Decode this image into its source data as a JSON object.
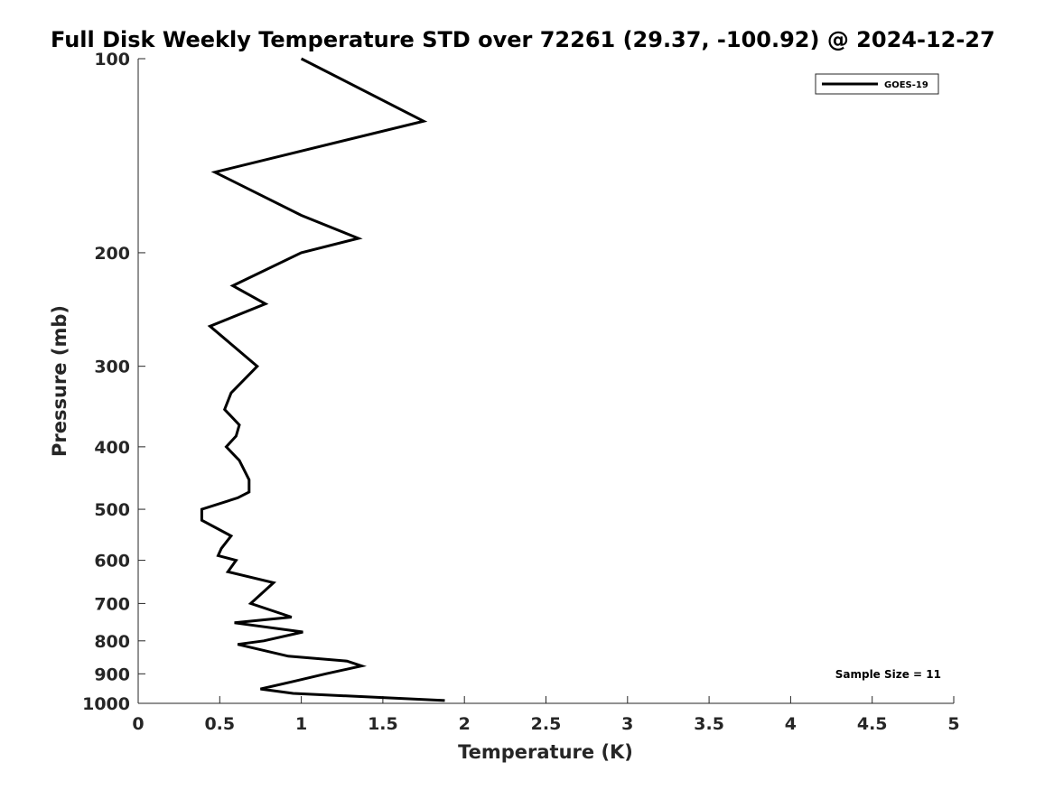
{
  "chart_data": {
    "type": "line",
    "title": "Full Disk Weekly Temperature STD over 72261 (29.37, -100.92) @ 2024-12-27",
    "xlabel": "Temperature (K)",
    "ylabel": "Pressure (mb)",
    "xlim": [
      0,
      5
    ],
    "ylim": [
      100,
      1000
    ],
    "y_scale": "log",
    "y_reversed": true,
    "x_ticks": [
      "0",
      "0.5",
      "1",
      "1.5",
      "2",
      "2.5",
      "3",
      "3.5",
      "4",
      "4.5",
      "5"
    ],
    "y_ticks": [
      "100",
      "200",
      "300",
      "400",
      "500",
      "600",
      "700",
      "800",
      "900",
      "1000"
    ],
    "grid": false,
    "legend": {
      "position": "top-right",
      "entries": [
        "GOES-19"
      ]
    },
    "annotation": "Sample Size = 11",
    "series": [
      {
        "name": "GOES-19",
        "color": "#000000",
        "x": [
          1.0,
          1.75,
          0.47,
          1.0,
          1.35,
          1.0,
          0.58,
          0.78,
          0.44,
          0.73,
          0.57,
          0.53,
          0.62,
          0.6,
          0.54,
          0.62,
          0.68,
          0.68,
          0.61,
          0.39,
          0.39,
          0.57,
          0.51,
          0.49,
          0.6,
          0.55,
          0.83,
          0.69,
          0.94,
          0.59,
          1.01,
          0.77,
          0.61,
          0.92,
          1.28,
          1.37,
          1.15,
          0.95,
          0.75,
          0.95,
          1.88
        ],
        "y": [
          100,
          125,
          150,
          175,
          190,
          200,
          225,
          240,
          260,
          300,
          330,
          350,
          370,
          385,
          400,
          420,
          450,
          470,
          480,
          500,
          520,
          550,
          575,
          590,
          600,
          625,
          650,
          700,
          735,
          750,
          775,
          800,
          810,
          845,
          860,
          875,
          900,
          925,
          950,
          965,
          990
        ]
      }
    ]
  }
}
